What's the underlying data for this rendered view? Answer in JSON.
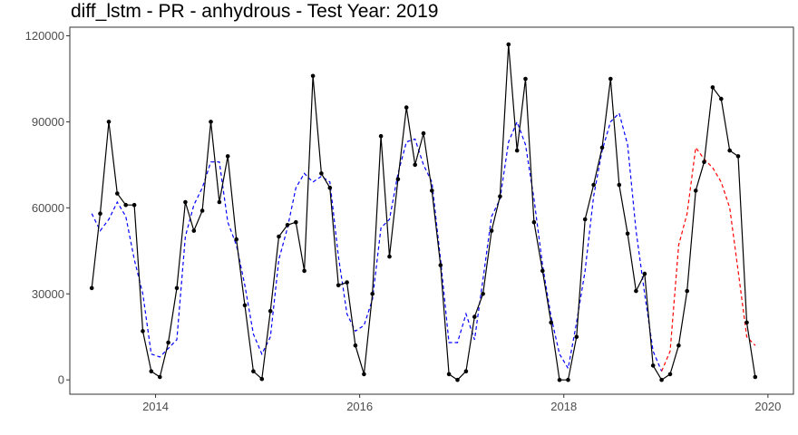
{
  "chart_data": {
    "type": "line",
    "title": "diff_lstm - PR - anhydrous - Test Year: 2019",
    "xlabel": "",
    "ylabel": "",
    "xlim": [
      2013.16,
      2020.25
    ],
    "ylim": [
      -5000,
      123000
    ],
    "x_ticks": [
      2014,
      2016,
      2018,
      2020
    ],
    "x_tick_labels": [
      "2014",
      "2016",
      "2018",
      "2020"
    ],
    "y_ticks": [
      0,
      30000,
      60000,
      90000,
      120000
    ],
    "y_tick_labels": [
      "0",
      "30000",
      "60000",
      "90000",
      "120000"
    ],
    "grid": false,
    "legend": "none",
    "series": [
      {
        "style": "solid-with-points",
        "color": "#000000",
        "points": [
          [
            2013.375,
            32000
          ],
          [
            2013.458,
            58000
          ],
          [
            2013.542,
            90000
          ],
          [
            2013.625,
            65000
          ],
          [
            2013.708,
            61000
          ],
          [
            2013.792,
            61000
          ],
          [
            2013.875,
            17000
          ],
          [
            2013.958,
            3000
          ],
          [
            2014.042,
            1000
          ],
          [
            2014.125,
            13000
          ],
          [
            2014.208,
            32000
          ],
          [
            2014.292,
            62000
          ],
          [
            2014.375,
            52000
          ],
          [
            2014.458,
            59000
          ],
          [
            2014.542,
            90000
          ],
          [
            2014.625,
            62000
          ],
          [
            2014.708,
            78000
          ],
          [
            2014.792,
            49000
          ],
          [
            2014.875,
            26000
          ],
          [
            2014.958,
            3000
          ],
          [
            2015.042,
            300
          ],
          [
            2015.125,
            24000
          ],
          [
            2015.208,
            50000
          ],
          [
            2015.292,
            54000
          ],
          [
            2015.375,
            55000
          ],
          [
            2015.458,
            38000
          ],
          [
            2015.542,
            106000
          ],
          [
            2015.625,
            72000
          ],
          [
            2015.708,
            67000
          ],
          [
            2015.792,
            33000
          ],
          [
            2015.875,
            34000
          ],
          [
            2015.958,
            12000
          ],
          [
            2016.042,
            2000
          ],
          [
            2016.125,
            30000
          ],
          [
            2016.208,
            85000
          ],
          [
            2016.292,
            43000
          ],
          [
            2016.375,
            70000
          ],
          [
            2016.458,
            95000
          ],
          [
            2016.542,
            75000
          ],
          [
            2016.625,
            86000
          ],
          [
            2016.708,
            66000
          ],
          [
            2016.792,
            40000
          ],
          [
            2016.875,
            2000
          ],
          [
            2016.958,
            0
          ],
          [
            2017.042,
            3000
          ],
          [
            2017.125,
            22000
          ],
          [
            2017.208,
            30000
          ],
          [
            2017.292,
            52000
          ],
          [
            2017.375,
            64000
          ],
          [
            2017.458,
            117000
          ],
          [
            2017.542,
            80000
          ],
          [
            2017.625,
            105000
          ],
          [
            2017.708,
            55000
          ],
          [
            2017.792,
            38000
          ],
          [
            2017.875,
            20000
          ],
          [
            2017.958,
            0
          ],
          [
            2018.042,
            0
          ],
          [
            2018.125,
            15000
          ],
          [
            2018.208,
            56000
          ],
          [
            2018.292,
            68000
          ],
          [
            2018.375,
            81000
          ],
          [
            2018.458,
            105000
          ],
          [
            2018.542,
            68000
          ],
          [
            2018.625,
            51000
          ],
          [
            2018.708,
            31000
          ],
          [
            2018.792,
            37000
          ],
          [
            2018.875,
            5000
          ],
          [
            2018.958,
            0
          ],
          [
            2019.042,
            2000
          ],
          [
            2019.125,
            12000
          ],
          [
            2019.208,
            31000
          ],
          [
            2019.292,
            66000
          ],
          [
            2019.375,
            76000
          ],
          [
            2019.458,
            102000
          ],
          [
            2019.542,
            98000
          ],
          [
            2019.625,
            80000
          ],
          [
            2019.708,
            78000
          ],
          [
            2019.792,
            20000
          ],
          [
            2019.875,
            1000
          ]
        ]
      },
      {
        "style": "dashed",
        "color": "#0000ff",
        "points": [
          [
            2013.375,
            58000
          ],
          [
            2013.458,
            52000
          ],
          [
            2013.542,
            56000
          ],
          [
            2013.625,
            62000
          ],
          [
            2013.708,
            57000
          ],
          [
            2013.792,
            42000
          ],
          [
            2013.875,
            30000
          ],
          [
            2013.958,
            9000
          ],
          [
            2014.042,
            8000
          ],
          [
            2014.125,
            11000
          ],
          [
            2014.208,
            14000
          ],
          [
            2014.292,
            50000
          ],
          [
            2014.375,
            61000
          ],
          [
            2014.458,
            67000
          ],
          [
            2014.542,
            76000
          ],
          [
            2014.625,
            76000
          ],
          [
            2014.708,
            55000
          ],
          [
            2014.792,
            47000
          ],
          [
            2014.875,
            33000
          ],
          [
            2014.958,
            16000
          ],
          [
            2015.042,
            9000
          ],
          [
            2015.125,
            15000
          ],
          [
            2015.208,
            42000
          ],
          [
            2015.292,
            53000
          ],
          [
            2015.375,
            67000
          ],
          [
            2015.458,
            72000
          ],
          [
            2015.542,
            69000
          ],
          [
            2015.625,
            71000
          ],
          [
            2015.708,
            69000
          ],
          [
            2015.792,
            43000
          ],
          [
            2015.875,
            23000
          ],
          [
            2015.958,
            17000
          ],
          [
            2016.042,
            19000
          ],
          [
            2016.125,
            28000
          ],
          [
            2016.208,
            53000
          ],
          [
            2016.292,
            56000
          ],
          [
            2016.375,
            72000
          ],
          [
            2016.458,
            83000
          ],
          [
            2016.542,
            84000
          ],
          [
            2016.625,
            75000
          ],
          [
            2016.708,
            69000
          ],
          [
            2016.792,
            42000
          ],
          [
            2016.875,
            13000
          ],
          [
            2016.958,
            13000
          ],
          [
            2017.042,
            23000
          ],
          [
            2017.125,
            14000
          ],
          [
            2017.208,
            35000
          ],
          [
            2017.292,
            57000
          ],
          [
            2017.375,
            63000
          ],
          [
            2017.458,
            83000
          ],
          [
            2017.542,
            90000
          ],
          [
            2017.625,
            82000
          ],
          [
            2017.708,
            63000
          ],
          [
            2017.792,
            40000
          ],
          [
            2017.875,
            22000
          ],
          [
            2017.958,
            9000
          ],
          [
            2018.042,
            4000
          ],
          [
            2018.125,
            20000
          ],
          [
            2018.208,
            38000
          ],
          [
            2018.292,
            64000
          ],
          [
            2018.375,
            80000
          ],
          [
            2018.458,
            90000
          ],
          [
            2018.542,
            93000
          ],
          [
            2018.625,
            82000
          ],
          [
            2018.708,
            52000
          ],
          [
            2018.792,
            30000
          ],
          [
            2018.875,
            10000
          ],
          [
            2018.958,
            3000
          ]
        ]
      },
      {
        "style": "dashed",
        "color": "#ff0000",
        "points": [
          [
            2018.958,
            3000
          ],
          [
            2019.042,
            10000
          ],
          [
            2019.125,
            47000
          ],
          [
            2019.208,
            58000
          ],
          [
            2019.292,
            81000
          ],
          [
            2019.375,
            77000
          ],
          [
            2019.458,
            74000
          ],
          [
            2019.542,
            69000
          ],
          [
            2019.625,
            60000
          ],
          [
            2019.708,
            38000
          ],
          [
            2019.792,
            15000
          ],
          [
            2019.875,
            12000
          ]
        ]
      }
    ]
  }
}
